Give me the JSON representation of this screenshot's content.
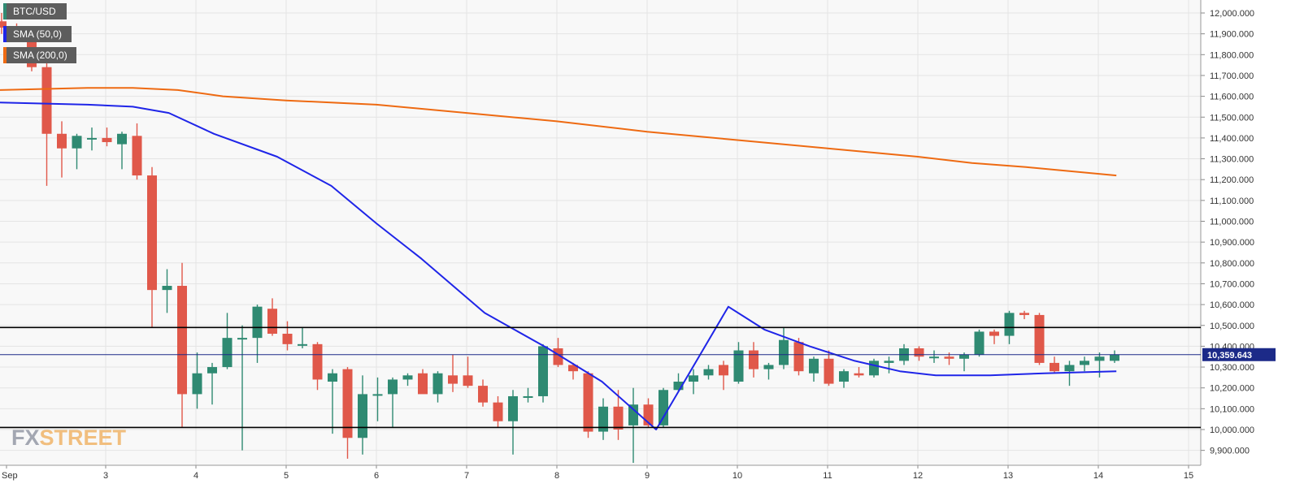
{
  "legend": {
    "symbol": "BTC/USD",
    "sma50": "SMA (50,0)",
    "sma200": "SMA (200,0)"
  },
  "watermark": {
    "fx": "FX",
    "street": "STREET"
  },
  "colors": {
    "up": "#2f8a72",
    "down": "#e0584a",
    "sma50": "#1f25e8",
    "sma200": "#ee6a12",
    "level": "#000000",
    "price_line": "#1c2a88",
    "price_label_bg": "#1c2a88"
  },
  "chart_data": {
    "type": "candlestick",
    "symbol": "BTC/USD",
    "interval_hours": 4,
    "x_axis": {
      "tick_labels": [
        "Sep",
        "3",
        "4",
        "5",
        "6",
        "7",
        "8",
        "9",
        "10",
        "11",
        "12",
        "13",
        "14",
        "15"
      ],
      "tick_positions_day": [
        1.9,
        3,
        4,
        5,
        6,
        7,
        8,
        9,
        10,
        11,
        12,
        13,
        14,
        15
      ],
      "range_day": [
        1.9,
        15.1
      ]
    },
    "y_axis": {
      "ylim": [
        9830000,
        12030000
      ],
      "tick_labels": [
        "9,900.000",
        "10,000.000",
        "10,100.000",
        "10,200.000",
        "10,300.000",
        "10,400.000",
        "10,500.000",
        "10,600.000",
        "10,700.000",
        "10,800.000",
        "10,900.000",
        "11,000.000",
        "11,100.000",
        "11,200.000",
        "11,300.000",
        "11,400.000",
        "11,500.000",
        "11,600.000",
        "11,700.000",
        "11,800.000",
        "11,900.000",
        "12,000.000"
      ],
      "tick_values": [
        9900000,
        10000000,
        10100000,
        10200000,
        10300000,
        10400000,
        10500000,
        10600000,
        10700000,
        10800000,
        10900000,
        11000000,
        11100000,
        11200000,
        11300000,
        11400000,
        11500000,
        11600000,
        11700000,
        11800000,
        11900000,
        12000000
      ],
      "grid": true,
      "position": "right"
    },
    "current_price": {
      "value": 10359643,
      "label": "10,359.643"
    },
    "horizontal_levels": [
      10490000,
      10010000
    ],
    "candles": [
      {
        "o": 11960000,
        "h": 12000000,
        "l": 11900000,
        "c": 11930000
      },
      {
        "o": 11900000,
        "h": 11950000,
        "l": 11860000,
        "c": 11880000
      },
      {
        "o": 11870000,
        "h": 11900000,
        "l": 11720000,
        "c": 11740000
      },
      {
        "o": 11740000,
        "h": 11760000,
        "l": 11170000,
        "c": 11420000
      },
      {
        "o": 11420000,
        "h": 11480000,
        "l": 11210000,
        "c": 11350000
      },
      {
        "o": 11350000,
        "h": 11420000,
        "l": 11250000,
        "c": 11410000
      },
      {
        "o": 11400000,
        "h": 11450000,
        "l": 11340000,
        "c": 11400000
      },
      {
        "o": 11400000,
        "h": 11450000,
        "l": 11360000,
        "c": 11380000
      },
      {
        "o": 11370000,
        "h": 11430000,
        "l": 11250000,
        "c": 11420000
      },
      {
        "o": 11410000,
        "h": 11470000,
        "l": 11200000,
        "c": 11220000
      },
      {
        "o": 11220000,
        "h": 11260000,
        "l": 10490000,
        "c": 10670000
      },
      {
        "o": 10670000,
        "h": 10770000,
        "l": 10560000,
        "c": 10690000
      },
      {
        "o": 10690000,
        "h": 10800000,
        "l": 10010000,
        "c": 10170000
      },
      {
        "o": 10170000,
        "h": 10370000,
        "l": 10100000,
        "c": 10270000
      },
      {
        "o": 10270000,
        "h": 10320000,
        "l": 10120000,
        "c": 10300000
      },
      {
        "o": 10300000,
        "h": 10560000,
        "l": 10290000,
        "c": 10440000
      },
      {
        "o": 10440000,
        "h": 10500000,
        "l": 9900000,
        "c": 10440000
      },
      {
        "o": 10440000,
        "h": 10600000,
        "l": 10320000,
        "c": 10590000
      },
      {
        "o": 10580000,
        "h": 10630000,
        "l": 10450000,
        "c": 10460000
      },
      {
        "o": 10460000,
        "h": 10520000,
        "l": 10380000,
        "c": 10410000
      },
      {
        "o": 10410000,
        "h": 10490000,
        "l": 10390000,
        "c": 10410000
      },
      {
        "o": 10410000,
        "h": 10420000,
        "l": 10190000,
        "c": 10240000
      },
      {
        "o": 10230000,
        "h": 10290000,
        "l": 9980000,
        "c": 10270000
      },
      {
        "o": 10290000,
        "h": 10300000,
        "l": 9860000,
        "c": 9960000
      },
      {
        "o": 9960000,
        "h": 10260000,
        "l": 9880000,
        "c": 10170000
      },
      {
        "o": 10170000,
        "h": 10250000,
        "l": 10040000,
        "c": 10170000
      },
      {
        "o": 10170000,
        "h": 10250000,
        "l": 10010000,
        "c": 10240000
      },
      {
        "o": 10240000,
        "h": 10270000,
        "l": 10210000,
        "c": 10260000
      },
      {
        "o": 10270000,
        "h": 10290000,
        "l": 10190000,
        "c": 10170000
      },
      {
        "o": 10170000,
        "h": 10280000,
        "l": 10130000,
        "c": 10270000
      },
      {
        "o": 10260000,
        "h": 10360000,
        "l": 10180000,
        "c": 10220000
      },
      {
        "o": 10260000,
        "h": 10350000,
        "l": 10200000,
        "c": 10210000
      },
      {
        "o": 10210000,
        "h": 10240000,
        "l": 10110000,
        "c": 10130000
      },
      {
        "o": 10130000,
        "h": 10160000,
        "l": 10010000,
        "c": 10040000
      },
      {
        "o": 10040000,
        "h": 10190000,
        "l": 9880000,
        "c": 10160000
      },
      {
        "o": 10160000,
        "h": 10200000,
        "l": 10130000,
        "c": 10160000
      },
      {
        "o": 10160000,
        "h": 10410000,
        "l": 10130000,
        "c": 10400000
      },
      {
        "o": 10390000,
        "h": 10440000,
        "l": 10300000,
        "c": 10310000
      },
      {
        "o": 10310000,
        "h": 10320000,
        "l": 10240000,
        "c": 10280000
      },
      {
        "o": 10270000,
        "h": 10280000,
        "l": 9960000,
        "c": 9990000
      },
      {
        "o": 9990000,
        "h": 10150000,
        "l": 9950000,
        "c": 10110000
      },
      {
        "o": 10110000,
        "h": 10190000,
        "l": 9950000,
        "c": 10000000
      },
      {
        "o": 10020000,
        "h": 10200000,
        "l": 9840000,
        "c": 10120000
      },
      {
        "o": 10120000,
        "h": 10150000,
        "l": 10010000,
        "c": 10020000
      },
      {
        "o": 10020000,
        "h": 10200000,
        "l": 10010000,
        "c": 10190000
      },
      {
        "o": 10190000,
        "h": 10270000,
        "l": 10180000,
        "c": 10230000
      },
      {
        "o": 10230000,
        "h": 10290000,
        "l": 10170000,
        "c": 10260000
      },
      {
        "o": 10260000,
        "h": 10310000,
        "l": 10240000,
        "c": 10290000
      },
      {
        "o": 10310000,
        "h": 10330000,
        "l": 10190000,
        "c": 10260000
      },
      {
        "o": 10230000,
        "h": 10420000,
        "l": 10220000,
        "c": 10380000
      },
      {
        "o": 10380000,
        "h": 10420000,
        "l": 10250000,
        "c": 10290000
      },
      {
        "o": 10290000,
        "h": 10320000,
        "l": 10240000,
        "c": 10310000
      },
      {
        "o": 10310000,
        "h": 10490000,
        "l": 10290000,
        "c": 10430000
      },
      {
        "o": 10420000,
        "h": 10440000,
        "l": 10260000,
        "c": 10280000
      },
      {
        "o": 10270000,
        "h": 10350000,
        "l": 10230000,
        "c": 10340000
      },
      {
        "o": 10340000,
        "h": 10380000,
        "l": 10210000,
        "c": 10220000
      },
      {
        "o": 10230000,
        "h": 10290000,
        "l": 10200000,
        "c": 10280000
      },
      {
        "o": 10270000,
        "h": 10300000,
        "l": 10250000,
        "c": 10260000
      },
      {
        "o": 10260000,
        "h": 10340000,
        "l": 10250000,
        "c": 10330000
      },
      {
        "o": 10320000,
        "h": 10350000,
        "l": 10270000,
        "c": 10330000
      },
      {
        "o": 10330000,
        "h": 10410000,
        "l": 10310000,
        "c": 10390000
      },
      {
        "o": 10390000,
        "h": 10400000,
        "l": 10330000,
        "c": 10350000
      },
      {
        "o": 10350000,
        "h": 10380000,
        "l": 10320000,
        "c": 10350000
      },
      {
        "o": 10350000,
        "h": 10370000,
        "l": 10310000,
        "c": 10340000
      },
      {
        "o": 10340000,
        "h": 10370000,
        "l": 10280000,
        "c": 10360000
      },
      {
        "o": 10360000,
        "h": 10480000,
        "l": 10350000,
        "c": 10470000
      },
      {
        "o": 10470000,
        "h": 10480000,
        "l": 10410000,
        "c": 10450000
      },
      {
        "o": 10450000,
        "h": 10570000,
        "l": 10410000,
        "c": 10560000
      },
      {
        "o": 10560000,
        "h": 10570000,
        "l": 10530000,
        "c": 10550000
      },
      {
        "o": 10550000,
        "h": 10560000,
        "l": 10310000,
        "c": 10320000
      },
      {
        "o": 10320000,
        "h": 10350000,
        "l": 10270000,
        "c": 10280000
      },
      {
        "o": 10280000,
        "h": 10330000,
        "l": 10210000,
        "c": 10310000
      },
      {
        "o": 10310000,
        "h": 10350000,
        "l": 10280000,
        "c": 10330000
      },
      {
        "o": 10330000,
        "h": 10370000,
        "l": 10250000,
        "c": 10350000
      },
      {
        "o": 10330000,
        "h": 10380000,
        "l": 10320000,
        "c": 10360000
      }
    ],
    "series": [
      {
        "name": "SMA (50,0)",
        "x_day": [
          1.9,
          2.8,
          3.3,
          3.7,
          4.2,
          4.9,
          5.5,
          6.0,
          6.5,
          7.2,
          7.9,
          8.5,
          9.1,
          9.9,
          10.3,
          10.8,
          11.3,
          11.8,
          12.2,
          12.8,
          13.4,
          14.2
        ],
        "values": [
          11570000,
          11560000,
          11550000,
          11520000,
          11420000,
          11310000,
          11170000,
          10990000,
          10820000,
          10560000,
          10390000,
          10230000,
          10000000,
          10590000,
          10480000,
          10400000,
          10330000,
          10280000,
          10260000,
          10260000,
          10270000,
          10280000
        ]
      },
      {
        "name": "SMA (200,0)",
        "x_day": [
          1.9,
          2.8,
          3.3,
          3.8,
          4.3,
          5.0,
          6.0,
          7.0,
          8.0,
          9.0,
          10.0,
          11.0,
          12.0,
          12.6,
          13.2,
          14.2
        ],
        "values": [
          11630000,
          11640000,
          11640000,
          11630000,
          11600000,
          11580000,
          11560000,
          11520000,
          11480000,
          11430000,
          11390000,
          11350000,
          11310000,
          11280000,
          11260000,
          11220000
        ]
      }
    ]
  }
}
